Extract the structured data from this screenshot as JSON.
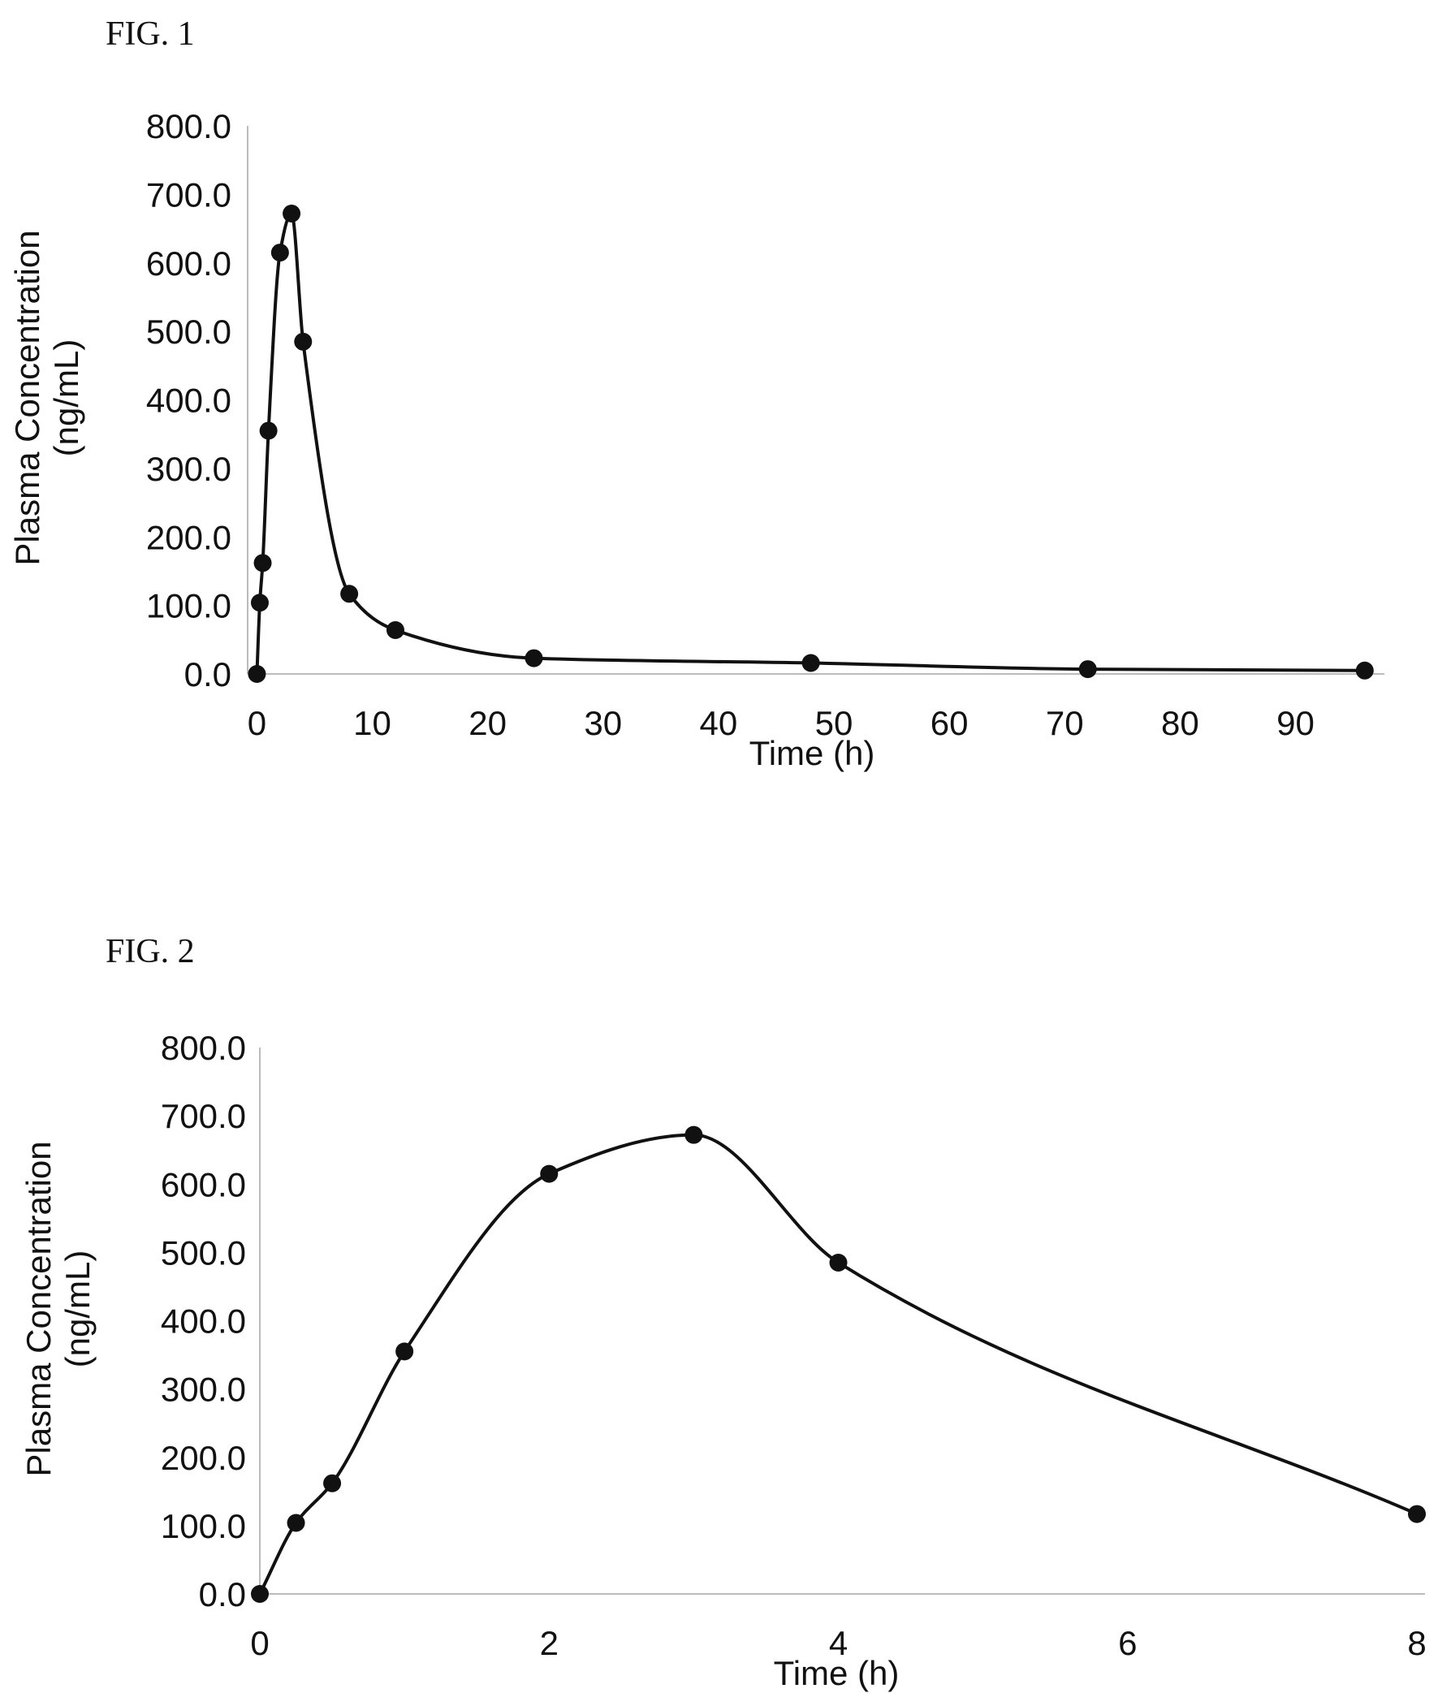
{
  "chart_data": [
    {
      "type": "line",
      "figure_label": "FIG. 1",
      "title": "",
      "xlabel": "Time (h)",
      "ylabel_lines": [
        "Plasma Concentration",
        "(ng/mL)"
      ],
      "xlim": [
        -2,
        97
      ],
      "ylim": [
        0,
        800
      ],
      "xticks": [
        0,
        10,
        20,
        30,
        40,
        50,
        60,
        70,
        80,
        90
      ],
      "yticks": [
        0,
        100,
        200,
        300,
        400,
        500,
        600,
        700,
        800
      ],
      "ytick_labels": [
        "0.0",
        "100.0",
        "200.0",
        "300.0",
        "400.0",
        "500.0",
        "600.0",
        "700.0",
        "800.0"
      ],
      "grid": false,
      "series": [
        {
          "x": [
            0,
            0.25,
            0.5,
            1,
            2,
            3,
            4,
            8,
            12,
            24,
            48,
            72,
            96
          ],
          "y": [
            0,
            104,
            162,
            355,
            615,
            672,
            485,
            117,
            64,
            23,
            16,
            7,
            5
          ]
        }
      ]
    },
    {
      "type": "line",
      "figure_label": "FIG. 2",
      "title": "",
      "xlabel": "Time (h)",
      "ylabel_lines": [
        "Plasma Concentration",
        "(ng/mL)"
      ],
      "xlim": [
        0,
        8
      ],
      "ylim": [
        0,
        800
      ],
      "xticks": [
        0,
        2,
        4,
        6,
        8
      ],
      "yticks": [
        0,
        100,
        200,
        300,
        400,
        500,
        600,
        700,
        800
      ],
      "ytick_labels": [
        "0.0",
        "100.0",
        "200.0",
        "300.0",
        "400.0",
        "500.0",
        "600.0",
        "700.0",
        "800.0"
      ],
      "grid": false,
      "series": [
        {
          "x": [
            0,
            0.25,
            0.5,
            1,
            2,
            3,
            4,
            8
          ],
          "y": [
            0,
            104,
            162,
            355,
            615,
            672,
            485,
            117
          ]
        }
      ]
    }
  ]
}
